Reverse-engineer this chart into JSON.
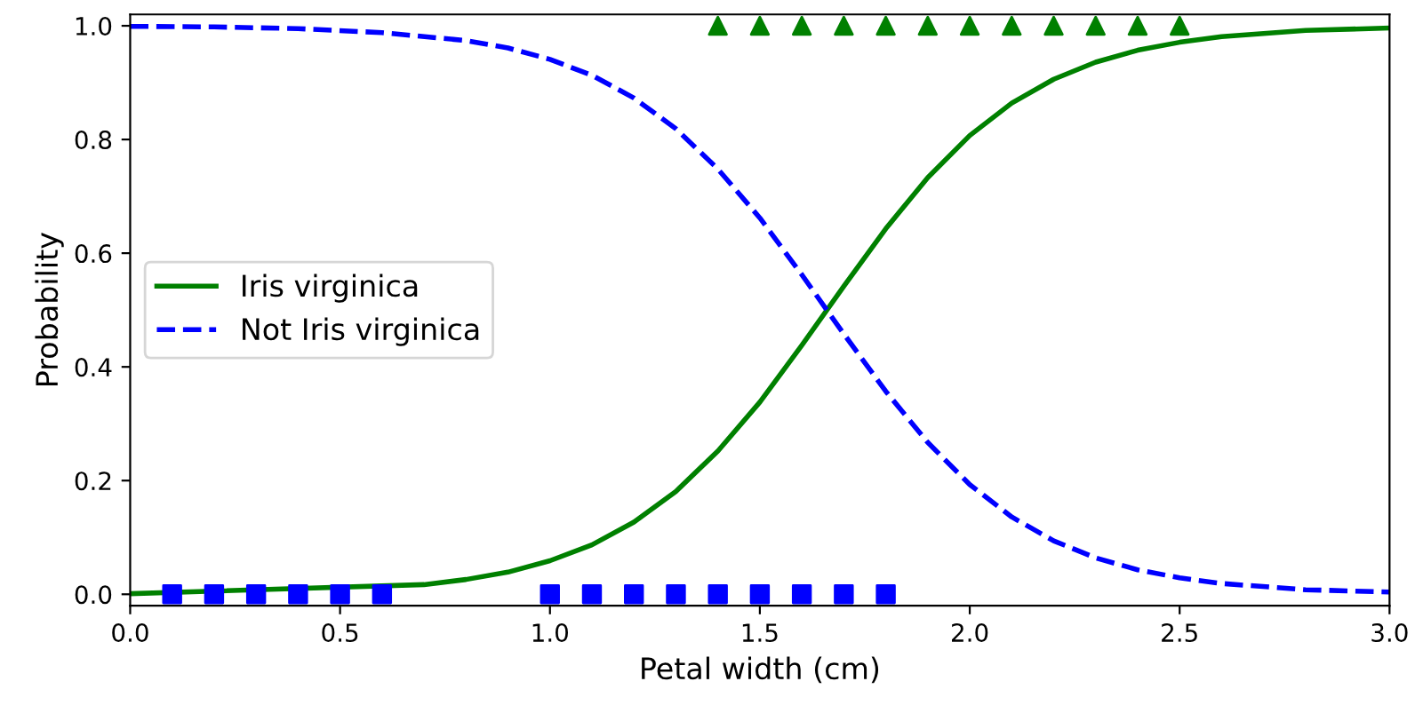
{
  "chart_data": {
    "type": "line",
    "xlabel": "Petal width (cm)",
    "ylabel": "Probability",
    "xlim": [
      0,
      3
    ],
    "ylim": [
      -0.02,
      1.02
    ],
    "xticks": [
      {
        "value": 0,
        "label": "0.0"
      },
      {
        "value": 0.5,
        "label": "0.5"
      },
      {
        "value": 1,
        "label": "1.0"
      },
      {
        "value": 1.5,
        "label": "1.5"
      },
      {
        "value": 2,
        "label": "2.0"
      },
      {
        "value": 2.5,
        "label": "2.5"
      },
      {
        "value": 3,
        "label": "3.0"
      }
    ],
    "yticks": [
      {
        "value": 0,
        "label": "0.0"
      },
      {
        "value": 0.2,
        "label": "0.2"
      },
      {
        "value": 0.4,
        "label": "0.4"
      },
      {
        "value": 0.6,
        "label": "0.6"
      },
      {
        "value": 0.8,
        "label": "0.8"
      },
      {
        "value": 1,
        "label": "1.0"
      }
    ],
    "grid": false,
    "legend": "center left",
    "series": [
      {
        "name": "Iris virginica",
        "color": "#008000",
        "line_style": "solid",
        "x": [
          0,
          0.7,
          0.8,
          0.9,
          1.0,
          1.1,
          1.2,
          1.3,
          1.4,
          1.5,
          1.6,
          1.7,
          1.8,
          1.9,
          2.0,
          2.1,
          2.2,
          2.3,
          2.4,
          2.5,
          2.6,
          2.8,
          3.0
        ],
        "values": [
          0.001,
          0.017,
          0.026,
          0.039,
          0.059,
          0.087,
          0.127,
          0.181,
          0.252,
          0.338,
          0.438,
          0.542,
          0.643,
          0.733,
          0.807,
          0.864,
          0.906,
          0.936,
          0.957,
          0.971,
          0.981,
          0.992,
          0.996
        ]
      },
      {
        "name": "Not Iris virginica",
        "color": "#0000ff",
        "line_style": "dashed",
        "x": [
          0,
          0.2,
          0.4,
          0.6,
          0.8,
          0.9,
          1.0,
          1.1,
          1.2,
          1.3,
          1.4,
          1.5,
          1.6,
          1.7,
          1.8,
          1.9,
          2.0,
          2.1,
          2.2,
          2.3,
          2.4,
          2.5,
          2.6,
          2.8,
          3.0
        ],
        "values": [
          0.999,
          0.998,
          0.995,
          0.988,
          0.974,
          0.961,
          0.941,
          0.913,
          0.873,
          0.819,
          0.748,
          0.662,
          0.562,
          0.458,
          0.357,
          0.267,
          0.193,
          0.136,
          0.094,
          0.064,
          0.043,
          0.029,
          0.019,
          0.008,
          0.004
        ]
      },
      {
        "type": "scatter",
        "marker": "square",
        "color": "#0000ff",
        "x": [
          0.1,
          0.2,
          0.3,
          0.4,
          0.5,
          0.6,
          1.0,
          1.1,
          1.2,
          1.3,
          1.4,
          1.5,
          1.6,
          1.7,
          1.8
        ],
        "values": [
          0,
          0,
          0,
          0,
          0,
          0,
          0,
          0,
          0,
          0,
          0,
          0,
          0,
          0,
          0
        ]
      },
      {
        "type": "scatter",
        "marker": "triangle",
        "color": "#008000",
        "x": [
          1.4,
          1.5,
          1.6,
          1.7,
          1.8,
          1.9,
          2.0,
          2.1,
          2.2,
          2.3,
          2.4,
          2.5
        ],
        "values": [
          1,
          1,
          1,
          1,
          1,
          1,
          1,
          1,
          1,
          1,
          1,
          1
        ]
      }
    ]
  }
}
